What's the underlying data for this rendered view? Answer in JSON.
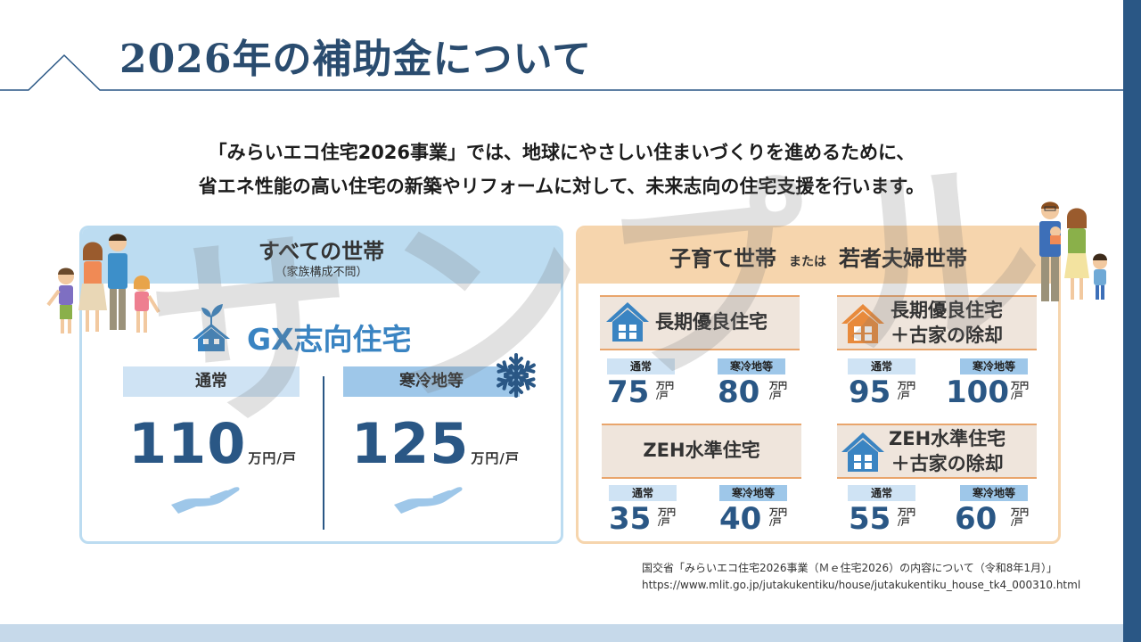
{
  "header": {
    "title": "2026年の補助金について"
  },
  "lead": {
    "line1": "「みらいエコ住宅2026事業」では、地球にやさしい住まいづくりを進めるために、",
    "line2": "省エネ性能の高い住宅の新築やリフォームに対して、未来志向の住宅支援を行います。"
  },
  "watermark": "サンプル",
  "all_households": {
    "title": "すべての世帯",
    "subtitle": "（家族構成不問）",
    "program": "GX志向住宅",
    "normal_label": "通常",
    "cold_label": "寒冷地等",
    "normal_value": "110",
    "cold_value": "125",
    "unit": "万円/戸"
  },
  "young_households": {
    "title_a": "子育て世帯",
    "title_or": "または",
    "title_b": "若者夫婦世帯",
    "normal_label": "通常",
    "cold_label": "寒冷地等",
    "unit_top": "万円",
    "unit_bottom": "/戸",
    "items": [
      {
        "line1": "長期優良住宅",
        "line2": "",
        "normal": "75",
        "cold": "80"
      },
      {
        "line1": "長期優良住宅",
        "line2": "＋古家の除却",
        "normal": "95",
        "cold": "100"
      },
      {
        "line1": "ZEH水準住宅",
        "line2": "",
        "normal": "35",
        "cold": "40"
      },
      {
        "line1": "ZEH水準住宅",
        "line2": "＋古家の除却",
        "normal": "55",
        "cold": "60"
      }
    ]
  },
  "source": {
    "line1": "国交省「みらいエコ住宅2026事業（Ｍｅ住宅2026）の内容について（令和8年1月）」",
    "line2": "https://www.mlit.go.jp/jutakukentiku/house/jutakukentiku_house_tk4_000310.html"
  },
  "icons": [
    "house-leaf-icon",
    "snowflake-icon",
    "hand-icon",
    "house-icon",
    "family-illustration"
  ],
  "colors": {
    "navy": "#2a5785",
    "blue": "#3a84c2",
    "light_blue": "#bcdcf1",
    "peach": "#f6d5ad",
    "orange_house": "#e88a3c"
  }
}
